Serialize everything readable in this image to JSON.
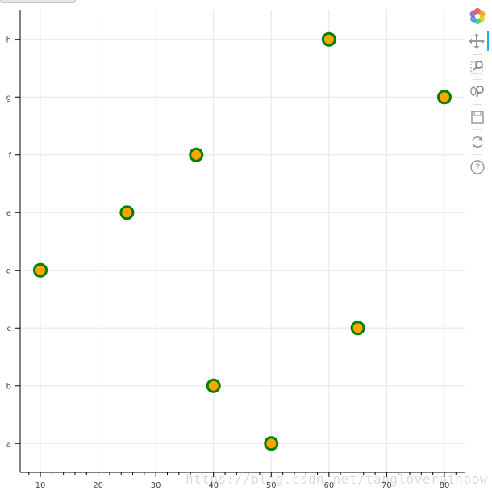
{
  "chart_data": {
    "type": "scatter",
    "title": "",
    "xlabel": "",
    "ylabel": "",
    "x_ticks": [
      10,
      20,
      30,
      40,
      50,
      60,
      70,
      80
    ],
    "xlim": [
      6.5,
      83.5
    ],
    "y_categories": [
      "a",
      "b",
      "c",
      "d",
      "e",
      "f",
      "g",
      "h"
    ],
    "grid": true,
    "series": [
      {
        "points": [
          {
            "x": 10,
            "y": "d"
          },
          {
            "x": 25,
            "y": "e"
          },
          {
            "x": 37,
            "y": "f"
          },
          {
            "x": 40,
            "y": "b"
          },
          {
            "x": 50,
            "y": "a"
          },
          {
            "x": 60,
            "y": "h"
          },
          {
            "x": 65,
            "y": "c"
          },
          {
            "x": 80,
            "y": "g"
          }
        ],
        "marker": "circle",
        "fill_color": "#ffa500",
        "line_color": "#008000"
      }
    ]
  },
  "toolbar": {
    "tools": [
      {
        "name": "bokeh-logo-icon",
        "active": false
      },
      {
        "name": "pan-icon",
        "active": true
      },
      {
        "name": "box-zoom-icon",
        "active": false
      },
      {
        "name": "wheel-zoom-icon",
        "active": false
      },
      {
        "name": "save-icon",
        "active": false
      },
      {
        "name": "reset-icon",
        "active": false
      },
      {
        "name": "help-icon",
        "active": false
      }
    ]
  },
  "watermark": "https://blog.csdn.net/tangloverainbow"
}
